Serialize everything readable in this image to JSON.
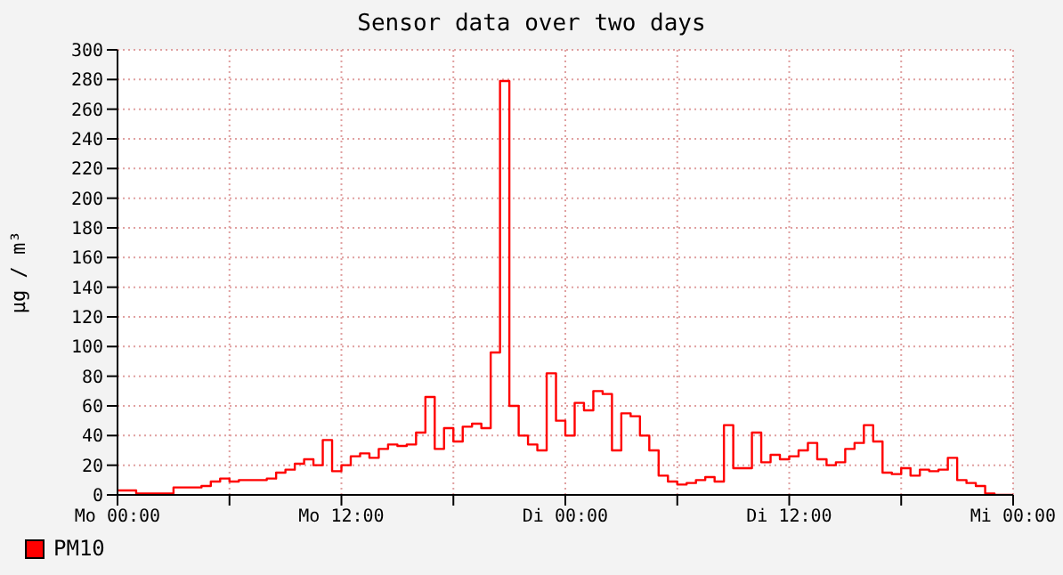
{
  "chart_data": {
    "type": "step",
    "title": "Sensor data over two days",
    "ylabel": "µg / m³",
    "categories": [
      "Mo 00:00",
      null,
      null,
      null,
      null,
      null,
      null,
      null,
      null,
      null,
      null,
      null,
      null,
      null,
      null,
      null,
      null,
      null,
      null,
      null,
      null,
      null,
      null,
      null,
      "Mo 12:00",
      null,
      null,
      null,
      null,
      null,
      null,
      null,
      null,
      null,
      null,
      null,
      null,
      null,
      null,
      null,
      null,
      null,
      null,
      null,
      null,
      null,
      null,
      null,
      "Di 00:00",
      null,
      null,
      null,
      null,
      null,
      null,
      null,
      null,
      null,
      null,
      null,
      null,
      null,
      null,
      null,
      null,
      null,
      null,
      null,
      null,
      null,
      null,
      null,
      "Di 12:00",
      null,
      null,
      null,
      null,
      null,
      null,
      null,
      null,
      null,
      null,
      null,
      null,
      null,
      null,
      null,
      null,
      null,
      null,
      null,
      null,
      null,
      null,
      null,
      "Mi 00:00"
    ],
    "ylim": [
      0,
      300
    ],
    "yticks": [
      0,
      20,
      40,
      60,
      80,
      100,
      120,
      140,
      160,
      180,
      200,
      220,
      240,
      260,
      280,
      300
    ],
    "grid": true,
    "legend": "bottom left",
    "marker": "none",
    "line_style": "solid",
    "series": [
      {
        "name": "PM10",
        "color": "#ff0000",
        "values": [
          3,
          3,
          1,
          1,
          1,
          1,
          5,
          5,
          5,
          6,
          9,
          11,
          9,
          10,
          10,
          10,
          11,
          15,
          17,
          21,
          24,
          20,
          37,
          16,
          20,
          26,
          28,
          25,
          31,
          34,
          33,
          34,
          42,
          66,
          31,
          45,
          36,
          46,
          48,
          45,
          96,
          279,
          60,
          40,
          34,
          30,
          82,
          50,
          40,
          62,
          57,
          70,
          68,
          30,
          55,
          53,
          40,
          30,
          13,
          9,
          7,
          8,
          10,
          12,
          9,
          47,
          18,
          18,
          42,
          22,
          27,
          24,
          26,
          30,
          35,
          24,
          20,
          22,
          31,
          35,
          47,
          36,
          15,
          14,
          18,
          13,
          17,
          16,
          17,
          25,
          10,
          8,
          6,
          1,
          0,
          0,
          0
        ]
      }
    ]
  }
}
